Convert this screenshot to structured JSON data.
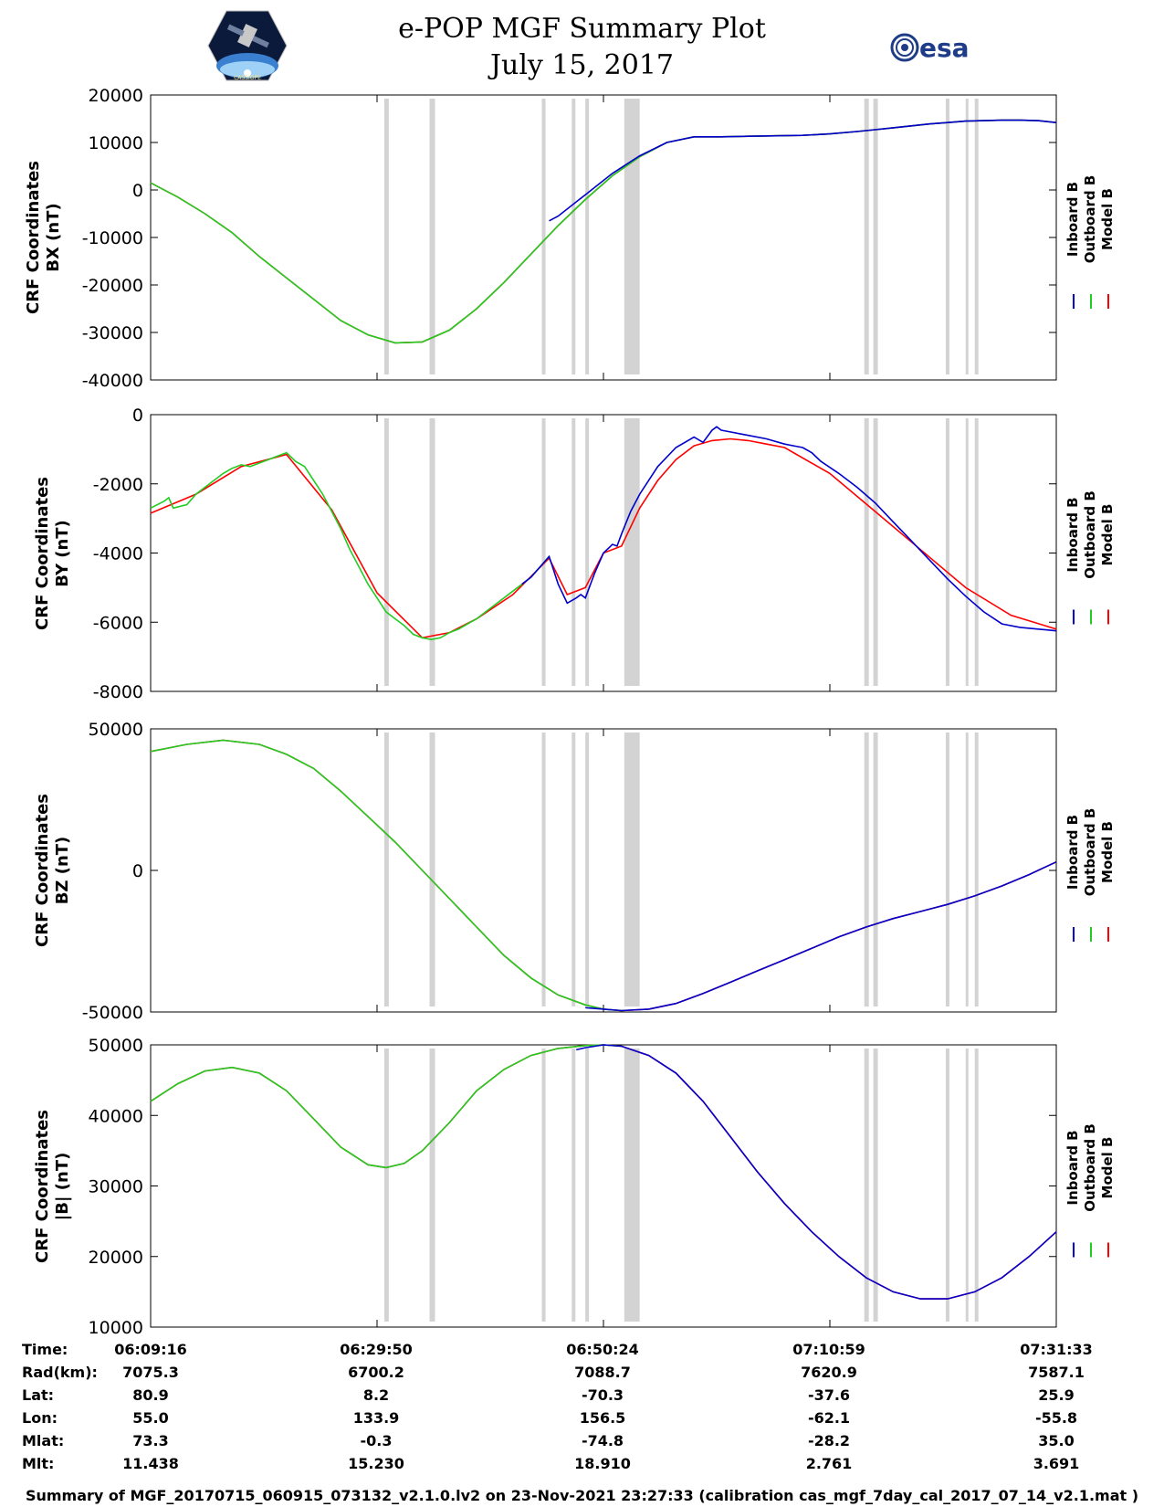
{
  "header": {
    "title": "e-POP MGF Summary Plot",
    "date": "July 15, 2017",
    "left_logo_label": "CASSIOPE",
    "right_logo_label": "esa"
  },
  "colors": {
    "inboard": "#0000cc",
    "outboard": "#22cc22",
    "model": "#ff0000",
    "gap": "#d3d3d3"
  },
  "legend": [
    "Inboard B",
    "Outboard B",
    "Model B"
  ],
  "chart_data": [
    {
      "type": "line",
      "title": "BX",
      "ylabel_line1": "CRF Coordinates",
      "ylabel_line2": "BX (nT)",
      "ylim": [
        -40000,
        20000
      ],
      "yticks": [
        20000,
        10000,
        0,
        -10000,
        -20000,
        -30000,
        -40000
      ],
      "ytick_labels": [
        "20000",
        "10000",
        "0",
        "-10000",
        "-20000",
        "-30000",
        "-40000"
      ],
      "xlim": [
        0,
        100
      ],
      "series": [
        {
          "name": "Outboard B",
          "x": [
            0,
            3,
            6,
            9,
            12,
            15,
            18,
            21,
            24,
            27,
            30,
            33,
            36,
            39,
            42,
            45,
            48,
            51,
            54,
            57,
            60,
            63,
            66,
            69,
            72,
            75,
            78,
            80,
            82,
            84,
            86,
            88,
            90,
            92,
            94,
            96,
            98,
            100
          ],
          "y": [
            1500,
            -1500,
            -5000,
            -9000,
            -14000,
            -18500,
            -23000,
            -27500,
            -30500,
            -32200,
            -32000,
            -29500,
            -25000,
            -19500,
            -13500,
            -7500,
            -2000,
            3000,
            7000,
            10000,
            11200,
            11200,
            11300,
            11400,
            11500,
            11800,
            12300,
            12700,
            13100,
            13500,
            13900,
            14200,
            14500,
            14600,
            14700,
            14700,
            14600,
            14200
          ]
        },
        {
          "name": "Model B",
          "x": [
            0,
            3,
            6,
            9,
            12,
            15,
            18,
            21,
            24,
            27,
            30,
            33,
            36,
            39,
            42,
            45,
            48,
            51,
            54,
            57,
            60,
            63,
            66,
            69,
            72,
            75,
            78,
            80,
            82,
            84,
            86,
            88,
            90,
            92,
            94,
            96,
            98,
            100
          ],
          "y": [
            1500,
            -1500,
            -5000,
            -9000,
            -14000,
            -18500,
            -23000,
            -27500,
            -30500,
            -32200,
            -32000,
            -29500,
            -25000,
            -19500,
            -13500,
            -7500,
            -2000,
            3000,
            7000,
            10000,
            11200,
            11200,
            11300,
            11400,
            11500,
            11800,
            12300,
            12700,
            13100,
            13500,
            13900,
            14200,
            14500,
            14600,
            14700,
            14700,
            14600,
            14200
          ]
        },
        {
          "name": "Inboard B",
          "x": [
            44,
            45,
            48,
            51,
            54,
            57,
            60,
            63,
            66,
            69,
            72,
            75,
            78,
            80,
            82,
            84,
            86,
            88,
            90,
            92,
            94,
            96,
            98,
            100
          ],
          "y": [
            -6500,
            -5500,
            -1000,
            3500,
            7200,
            10000,
            11200,
            11200,
            11300,
            11400,
            11500,
            11800,
            12300,
            12700,
            13100,
            13500,
            13900,
            14200,
            14500,
            14600,
            14700,
            14700,
            14600,
            14200
          ]
        }
      ]
    },
    {
      "type": "line",
      "title": "BY",
      "ylabel_line1": "CRF Coordinates",
      "ylabel_line2": "BY (nT)",
      "ylim": [
        -8000,
        0
      ],
      "yticks": [
        0,
        -2000,
        -4000,
        -6000,
        -8000
      ],
      "ytick_labels": [
        "0",
        "-2000",
        "-4000",
        "-6000",
        "-8000"
      ],
      "xlim": [
        0,
        100
      ],
      "series": [
        {
          "name": "Outboard B",
          "x": [
            0,
            1.5,
            2,
            2.5,
            4,
            5,
            6,
            7,
            8,
            9,
            10,
            11,
            12,
            13,
            14,
            15,
            16,
            17,
            18,
            19,
            20,
            21,
            22,
            23,
            24,
            25,
            26,
            27,
            28,
            29,
            30,
            31,
            32,
            33,
            34,
            35,
            36,
            37,
            38,
            39,
            40,
            41,
            42,
            43,
            44
          ],
          "y": [
            -2700,
            -2500,
            -2400,
            -2700,
            -2600,
            -2300,
            -2100,
            -1900,
            -1700,
            -1550,
            -1450,
            -1500,
            -1400,
            -1300,
            -1200,
            -1100,
            -1350,
            -1500,
            -1900,
            -2300,
            -2800,
            -3300,
            -3900,
            -4400,
            -4900,
            -5300,
            -5700,
            -5900,
            -6100,
            -6350,
            -6450,
            -6500,
            -6450,
            -6300,
            -6200,
            -6050,
            -5900,
            -5700,
            -5500,
            -5300,
            -5100,
            -4900,
            -4700,
            -4400,
            -4100
          ]
        },
        {
          "name": "Model B",
          "x": [
            0,
            5,
            10,
            15,
            20,
            25,
            30,
            33,
            36,
            40,
            44,
            46,
            48,
            50,
            52,
            54,
            56,
            58,
            60,
            62,
            64,
            66,
            68,
            70,
            75,
            80,
            85,
            90,
            95,
            100
          ],
          "y": [
            -2850,
            -2300,
            -1500,
            -1150,
            -2750,
            -5150,
            -6450,
            -6300,
            -5900,
            -5200,
            -4150,
            -5200,
            -5000,
            -4000,
            -3800,
            -2700,
            -1900,
            -1300,
            -900,
            -750,
            -700,
            -750,
            -850,
            -950,
            -1700,
            -2800,
            -3900,
            -5000,
            -5800,
            -6200
          ]
        },
        {
          "name": "Inboard B",
          "x": [
            41,
            42,
            43,
            44,
            45,
            46,
            47,
            47.5,
            48,
            49,
            50,
            51,
            51.5,
            52,
            53,
            54,
            56,
            58,
            60,
            61,
            62,
            62.5,
            63,
            64,
            65,
            66,
            68,
            70,
            71,
            72,
            73,
            74,
            76,
            78,
            80,
            82,
            84,
            86,
            88,
            90,
            92,
            94,
            96,
            98,
            100
          ],
          "y": [
            -4900,
            -4700,
            -4400,
            -4100,
            -4900,
            -5450,
            -5300,
            -5200,
            -5300,
            -4600,
            -4000,
            -3750,
            -3800,
            -3450,
            -2800,
            -2300,
            -1500,
            -950,
            -650,
            -800,
            -450,
            -350,
            -450,
            -500,
            -550,
            -600,
            -700,
            -850,
            -900,
            -950,
            -1100,
            -1350,
            -1700,
            -2100,
            -2550,
            -3100,
            -3650,
            -4200,
            -4750,
            -5250,
            -5700,
            -6050,
            -6150,
            -6200,
            -6250
          ]
        }
      ]
    },
    {
      "type": "line",
      "title": "BZ",
      "ylabel_line1": "CRF Coordinates",
      "ylabel_line2": "BZ (nT)",
      "ylim": [
        -50000,
        50000
      ],
      "yticks": [
        50000,
        0,
        -50000
      ],
      "ytick_labels": [
        "50000",
        "0",
        "-50000"
      ],
      "xlim": [
        0,
        100
      ],
      "series": [
        {
          "name": "Outboard B",
          "x": [
            0,
            4,
            8,
            12,
            15,
            18,
            21,
            24,
            27,
            30,
            33,
            36,
            39,
            42,
            45,
            48,
            50,
            52
          ],
          "y": [
            42000,
            44500,
            46000,
            44500,
            41000,
            36000,
            28000,
            19000,
            10000,
            0,
            -10000,
            -20000,
            -30000,
            -38000,
            -44000,
            -47500,
            -49000,
            -49500
          ]
        },
        {
          "name": "Model B",
          "x": [
            0,
            4,
            8,
            12,
            15,
            18,
            21,
            24,
            27,
            30,
            33,
            36,
            39,
            42,
            45,
            48,
            50,
            52,
            55,
            58,
            61,
            64,
            67,
            70,
            73,
            76,
            79,
            82,
            85,
            88,
            91,
            94,
            97,
            100
          ],
          "y": [
            42000,
            44500,
            46000,
            44500,
            41000,
            36000,
            28000,
            19000,
            10000,
            0,
            -10000,
            -20000,
            -30000,
            -38000,
            -44000,
            -47500,
            -49000,
            -49500,
            -49000,
            -47000,
            -43500,
            -39500,
            -35500,
            -31500,
            -27500,
            -23500,
            -20000,
            -17000,
            -14500,
            -12000,
            -9000,
            -5500,
            -1500,
            3000
          ]
        },
        {
          "name": "Inboard B",
          "x": [
            48,
            50,
            52,
            55,
            58,
            61,
            64,
            67,
            70,
            73,
            76,
            79,
            82,
            85,
            88,
            91,
            94,
            97,
            100
          ],
          "y": [
            -48500,
            -49000,
            -49500,
            -49000,
            -47000,
            -43500,
            -39500,
            -35500,
            -31500,
            -27500,
            -23500,
            -20000,
            -17000,
            -14500,
            -12000,
            -9000,
            -5500,
            -1500,
            3000
          ]
        }
      ]
    },
    {
      "type": "line",
      "title": "|B|",
      "ylabel_line1": "CRF Coordinates",
      "ylabel_line2": "|B| (nT)",
      "ylim": [
        10000,
        50000
      ],
      "yticks": [
        50000,
        40000,
        30000,
        20000,
        10000
      ],
      "ytick_labels": [
        "50000",
        "40000",
        "30000",
        "20000",
        "10000"
      ],
      "xlim": [
        0,
        100
      ],
      "series": [
        {
          "name": "Outboard B",
          "x": [
            0,
            3,
            6,
            9,
            12,
            15,
            18,
            21,
            24,
            26,
            28,
            30,
            33,
            36,
            39,
            42,
            45,
            48,
            50,
            52
          ],
          "y": [
            42000,
            44500,
            46300,
            46800,
            46000,
            43500,
            39500,
            35500,
            33000,
            32600,
            33200,
            35000,
            39000,
            43500,
            46500,
            48500,
            49500,
            49900,
            50000,
            49800
          ]
        },
        {
          "name": "Model B",
          "x": [
            0,
            3,
            6,
            9,
            12,
            15,
            18,
            21,
            24,
            26,
            28,
            30,
            33,
            36,
            39,
            42,
            45,
            48,
            50,
            52,
            55,
            58,
            61,
            64,
            67,
            70,
            73,
            76,
            79,
            82,
            85,
            88,
            91,
            94,
            97,
            100
          ],
          "y": [
            42000,
            44500,
            46300,
            46800,
            46000,
            43500,
            39500,
            35500,
            33000,
            32600,
            33200,
            35000,
            39000,
            43500,
            46500,
            48500,
            49500,
            49900,
            50000,
            49800,
            48500,
            46000,
            42000,
            37000,
            32000,
            27500,
            23500,
            20000,
            17000,
            15000,
            14000,
            14000,
            15000,
            17000,
            20000,
            23500
          ]
        },
        {
          "name": "Inboard B",
          "x": [
            47,
            48,
            50,
            52,
            55,
            58,
            61,
            64,
            67,
            70,
            73,
            76,
            79,
            82,
            85,
            88,
            91,
            94,
            97,
            100
          ],
          "y": [
            49300,
            49600,
            50000,
            49800,
            48500,
            46000,
            42000,
            37000,
            32000,
            27500,
            23500,
            20000,
            17000,
            15000,
            14000,
            14000,
            15000,
            17000,
            20000,
            23500
          ]
        }
      ]
    }
  ],
  "gap_bands_x": [
    [
      25.8,
      26.3
    ],
    [
      30.8,
      31.4
    ],
    [
      43.2,
      43.6
    ],
    [
      46.5,
      46.9
    ],
    [
      48.0,
      48.4
    ],
    [
      52.3,
      54.0
    ],
    [
      78.8,
      79.3
    ],
    [
      79.8,
      80.3
    ],
    [
      87.8,
      88.2
    ],
    [
      90.0,
      90.3
    ],
    [
      91.0,
      91.4
    ]
  ],
  "xticks": [
    0,
    25,
    50,
    75,
    100
  ],
  "orbit_table": {
    "row_labels": [
      "Time:",
      "Rad(km):",
      "Lat:",
      "Lon:",
      "Mlat:",
      "Mlt:"
    ],
    "columns": [
      [
        "06:09:16",
        "7075.3",
        "80.9",
        "55.0",
        "73.3",
        "11.438"
      ],
      [
        "06:29:50",
        "6700.2",
        "8.2",
        "133.9",
        "-0.3",
        "15.230"
      ],
      [
        "06:50:24",
        "7088.7",
        "-70.3",
        "156.5",
        "-74.8",
        "18.910"
      ],
      [
        "07:10:59",
        "7620.9",
        "-37.6",
        "-62.1",
        "-28.2",
        "2.761"
      ],
      [
        "07:31:33",
        "7587.1",
        "25.9",
        "-55.8",
        "35.0",
        "3.691"
      ]
    ]
  },
  "footer": "Summary of MGF_20170715_060915_073132_v2.1.0.lv2 on 23-Nov-2021 23:27:33 (calibration cas_mgf_7day_cal_2017_07_14_v2.1.mat )"
}
